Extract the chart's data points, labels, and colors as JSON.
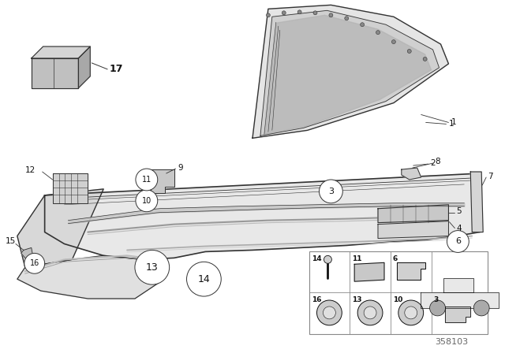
{
  "background_color": "#ffffff",
  "line_color": "#333333",
  "dark_line": "#111111",
  "gray_fill": "#d8d8d8",
  "light_gray": "#e8e8e8",
  "diagram_number": "358103",
  "figsize": [
    6.4,
    4.48
  ],
  "dpi": 100
}
